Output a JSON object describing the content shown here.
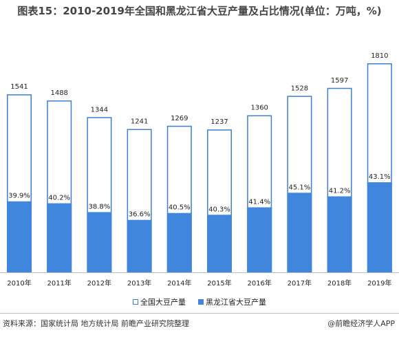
{
  "chart_data": {
    "type": "bar",
    "title": "图表15：2010-2019年全国和黑龙江省大豆产量及占比情况(单位：万吨，%)",
    "categories": [
      "2010年",
      "2011年",
      "2012年",
      "2013年",
      "2014年",
      "2015年",
      "2016年",
      "2017年",
      "2018年",
      "2019年"
    ],
    "series": [
      {
        "name": "全国大豆产量",
        "values": [
          1541,
          1488,
          1344,
          1241,
          1269,
          1237,
          1360,
          1528,
          1597,
          1810
        ],
        "color": "#ffffff",
        "border": "#3a7fd0"
      },
      {
        "name": "黑龙江省大豆产量",
        "share_percent": [
          39.9,
          40.2,
          38.8,
          36.6,
          40.5,
          40.3,
          41.4,
          45.1,
          41.2,
          43.1
        ],
        "share_labels": [
          "39.9%",
          "40.2%",
          "38.8%",
          "36.6%",
          "40.5%",
          "40.3%",
          "41.4%",
          "45.1%",
          "41.2%",
          "43.1%"
        ],
        "color": "#3f86dc"
      }
    ],
    "ylim": [
      0,
      1810
    ],
    "grid": false,
    "legend": "bottom-center"
  },
  "footer": {
    "source": "资料来源：国家统计局 地方统计局 前瞻产业研究院整理",
    "brand": "@前瞻经济学人APP"
  }
}
